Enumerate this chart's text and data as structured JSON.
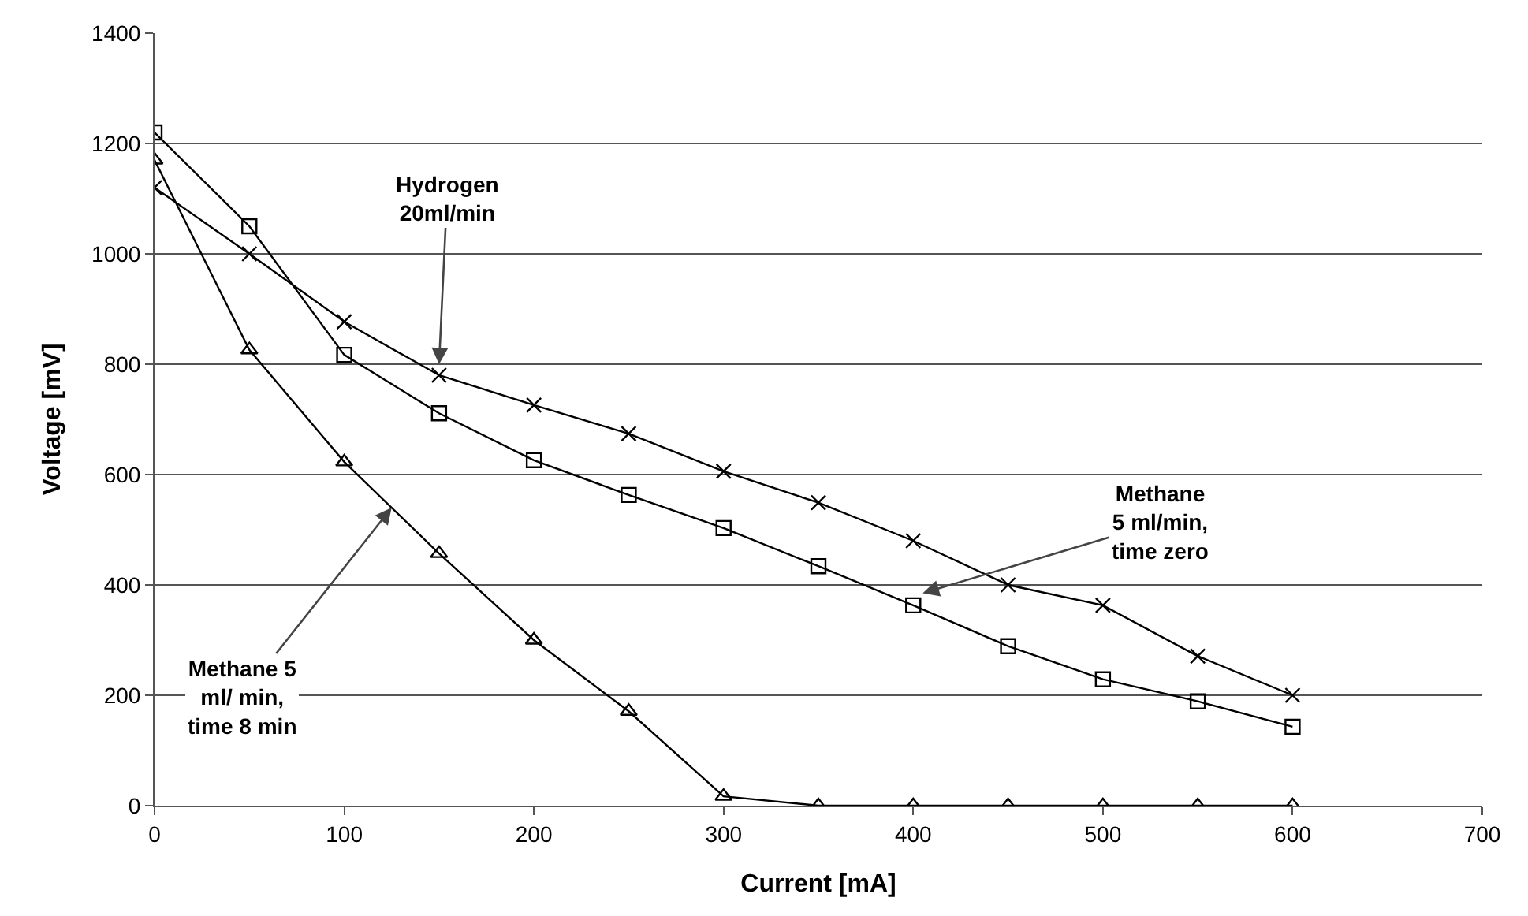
{
  "chart_data": {
    "type": "line",
    "xlabel": "Current [mA]",
    "ylabel": "Voltage [mV]",
    "x": [
      0,
      50,
      100,
      150,
      200,
      250,
      300,
      350,
      400,
      450,
      500,
      550,
      600
    ],
    "series": [
      {
        "color": "#000000",
        "marker": "cross",
        "values": [
          1120,
          1000,
          877,
          780,
          726,
          674,
          606,
          549,
          480,
          400,
          363,
          271,
          200
        ]
      },
      {
        "color": "#000000",
        "marker": "square",
        "values": [
          1220,
          1050,
          817,
          711,
          626,
          563,
          503,
          434,
          363,
          289,
          229,
          189,
          143
        ]
      },
      {
        "color": "#000000",
        "marker": "triangle",
        "values": [
          1170,
          826,
          623,
          457,
          300,
          171,
          17,
          0,
          0,
          0,
          0,
          0,
          0
        ]
      }
    ],
    "xlim": [
      0,
      700
    ],
    "xticks": [
      0,
      100,
      200,
      300,
      400,
      500,
      600,
      700
    ],
    "ylim": [
      0,
      1400
    ],
    "yticks": [
      0,
      200,
      400,
      600,
      800,
      1000,
      1200,
      1400
    ],
    "grid": "y",
    "line_style": "solid",
    "annotations": [
      {
        "text": "Hydrogen\n20ml/min",
        "x": 150,
        "y": 800
      },
      {
        "text": "Methane\n5 ml/min,\ntime zero",
        "x": 405,
        "y": 385
      },
      {
        "text": "Methane 5\nml/ min,\ntime 8 min",
        "x": 125,
        "y": 540
      }
    ]
  }
}
